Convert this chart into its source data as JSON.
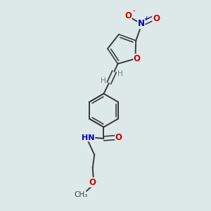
{
  "background_color": "#dde8e8",
  "bond_color": "#3a3a3a",
  "atom_colors": {
    "O": "#cc0000",
    "N": "#0000cc",
    "C": "#3a3a3a",
    "H": "#6a8a8a"
  },
  "figsize": [
    3.0,
    3.0
  ],
  "dpi": 100,
  "xlim": [
    0,
    10
  ],
  "ylim": [
    0,
    12
  ]
}
